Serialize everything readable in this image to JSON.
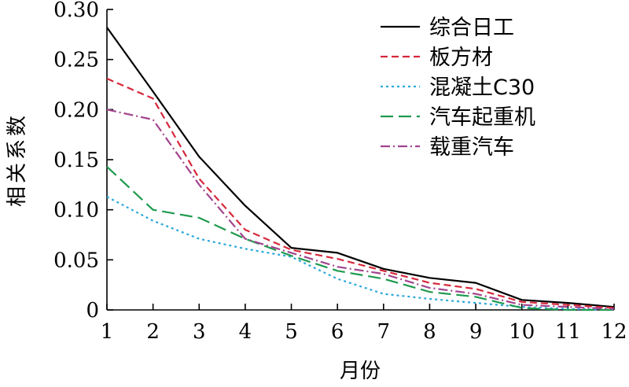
{
  "chart_data": {
    "type": "line",
    "title": "",
    "xlabel": "月份",
    "ylabel": "相关系数",
    "x": [
      1,
      2,
      3,
      4,
      5,
      6,
      7,
      8,
      9,
      10,
      11,
      12
    ],
    "xlim": [
      1,
      12
    ],
    "ylim": [
      0,
      0.3
    ],
    "xticks": [
      "1",
      "2",
      "3",
      "4",
      "5",
      "6",
      "7",
      "8",
      "9",
      "10",
      "11",
      "12"
    ],
    "yticks": [
      "0",
      "0.05",
      "0.10",
      "0.15",
      "0.20",
      "0.25",
      "0.30"
    ],
    "ytick_values": [
      0,
      0.05,
      0.1,
      0.15,
      0.2,
      0.25,
      0.3
    ],
    "grid": false,
    "legend_position": "top-right",
    "series": [
      {
        "name": "综合日工",
        "color": "#000000",
        "dash": "solid",
        "values": [
          0.282,
          0.218,
          0.153,
          0.104,
          0.062,
          0.057,
          0.041,
          0.032,
          0.027,
          0.01,
          0.007,
          0.003
        ]
      },
      {
        "name": "板方材",
        "color": "#d6283b",
        "dash": "dashed",
        "values": [
          0.231,
          0.211,
          0.131,
          0.08,
          0.06,
          0.051,
          0.039,
          0.027,
          0.021,
          0.008,
          0.005,
          0.002
        ]
      },
      {
        "name": "混凝土C30",
        "color": "#2aa8d9",
        "dash": "dotted",
        "values": [
          0.113,
          0.089,
          0.071,
          0.061,
          0.053,
          0.031,
          0.016,
          0.011,
          0.007,
          0.003,
          0.001,
          0.0
        ]
      },
      {
        "name": "汽车起重机",
        "color": "#1f9a4f",
        "dash": "longdash",
        "values": [
          0.143,
          0.1,
          0.092,
          0.071,
          0.054,
          0.039,
          0.031,
          0.018,
          0.013,
          0.002,
          0.0,
          0.0
        ]
      },
      {
        "name": "载重汽车",
        "color": "#a2448e",
        "dash": "dashdot",
        "values": [
          0.2,
          0.19,
          0.125,
          0.071,
          0.057,
          0.043,
          0.036,
          0.022,
          0.016,
          0.005,
          0.003,
          0.001
        ]
      }
    ]
  }
}
